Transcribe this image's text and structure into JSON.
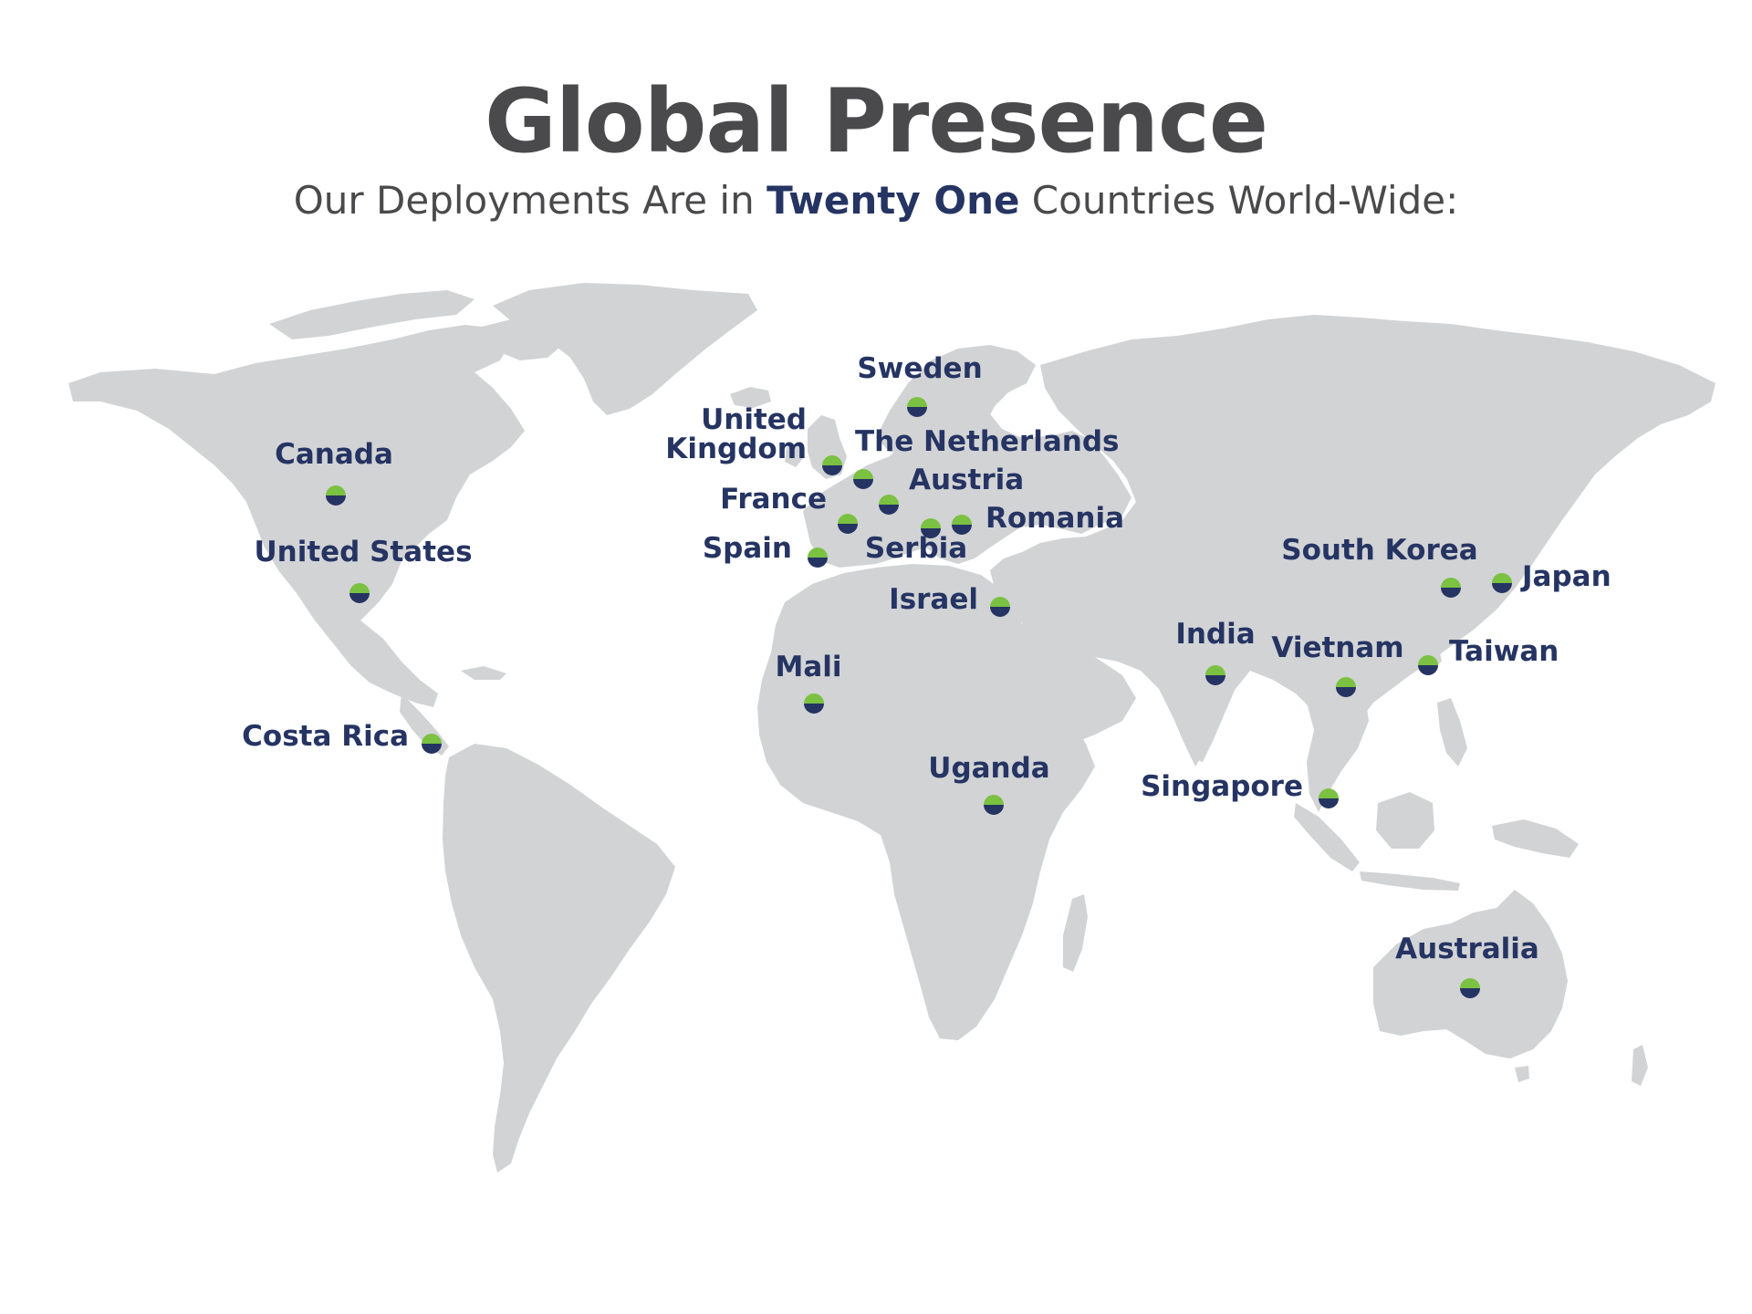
{
  "header": {
    "title": "Global Presence",
    "subtitle_before": "Our Deployments Are in ",
    "subtitle_highlight": "Twenty One",
    "subtitle_after": " Countries World-Wide:"
  },
  "colors": {
    "title": "#4a4a4c",
    "subtitle": "#4a4a4c",
    "accent": "#253462",
    "marker_top": "#7bc142",
    "marker_bottom": "#253462",
    "land": "#d2d3d5"
  },
  "locations": [
    {
      "id": "sweden",
      "name": "Sweden"
    },
    {
      "id": "united-kingdom",
      "name": "United Kingdom",
      "lines": [
        "United",
        "Kingdom"
      ]
    },
    {
      "id": "the-netherlands",
      "name": "The Netherlands"
    },
    {
      "id": "austria",
      "name": "Austria"
    },
    {
      "id": "france",
      "name": "France"
    },
    {
      "id": "romania",
      "name": "Romania"
    },
    {
      "id": "spain",
      "name": "Spain"
    },
    {
      "id": "serbia",
      "name": "Serbia"
    },
    {
      "id": "israel",
      "name": "Israel"
    },
    {
      "id": "canada",
      "name": "Canada"
    },
    {
      "id": "united-states",
      "name": "United States"
    },
    {
      "id": "costa-rica",
      "name": "Costa Rica"
    },
    {
      "id": "mali",
      "name": "Mali"
    },
    {
      "id": "uganda",
      "name": "Uganda"
    },
    {
      "id": "india",
      "name": "India"
    },
    {
      "id": "vietnam",
      "name": "Vietnam"
    },
    {
      "id": "taiwan",
      "name": "Taiwan"
    },
    {
      "id": "south-korea",
      "name": "South Korea"
    },
    {
      "id": "japan",
      "name": "Japan"
    },
    {
      "id": "singapore",
      "name": "Singapore"
    },
    {
      "id": "australia",
      "name": "Australia"
    }
  ]
}
